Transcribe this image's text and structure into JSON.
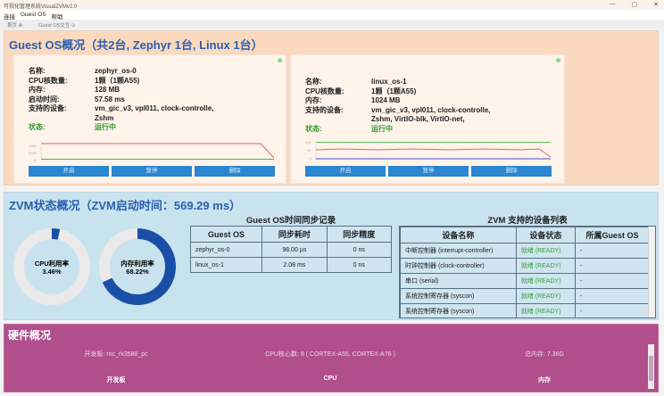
{
  "window": {
    "title": "可视化管理系统VisualZVMv2.0",
    "controls": [
      "—",
      "▢",
      "✕"
    ]
  },
  "menu": [
    "连接",
    "Guest OS",
    "帮助"
  ],
  "tabs": [
    "首页 ⊗",
    "Guest OS交互 ⊙"
  ],
  "guest_section": {
    "title": "Guest OS概况（共2台, Zephyr 1台, Linux 1台）",
    "cards": [
      {
        "rows": [
          [
            "名称:",
            "zephyr_os-0"
          ],
          [
            "CPU核数量:",
            "1颗（1颗A55)"
          ],
          [
            "内存:",
            "128 MB"
          ],
          [
            "启动时间:",
            "57.58 ms"
          ],
          [
            "支持的设备:",
            "vm_gic_v3, vpl011, clock-controlle,\nZshm"
          ]
        ],
        "status_label": "状态:",
        "status": "运行中",
        "chart_ticks": [
          "6000",
          "4000",
          "2000",
          "0"
        ],
        "buttons": [
          "开启",
          "暂停",
          "删除"
        ]
      },
      {
        "rows": [
          [
            "名称:",
            "linux_os-1"
          ],
          [
            "CPU核数量:",
            "1颗（1颗A55)"
          ],
          [
            "内存:",
            "1024 MB"
          ],
          [
            "支持的设备:",
            "vm_gic_v3, vpl011, clock-controlle,\nZshm, VirtIO-blk, VirtIO-net,"
          ]
        ],
        "status_label": "状态:",
        "status": "运行中",
        "chart_ticks": [
          "100",
          "50",
          "0"
        ],
        "buttons": [
          "开启",
          "暂停",
          "删除"
        ]
      }
    ]
  },
  "zvm_section": {
    "title": "ZVM状态概况（ZVM启动时间：569.29 ms）",
    "cpu": {
      "label": "CPU利用率",
      "value": "3.46%",
      "percent": 3.46
    },
    "mem": {
      "label": "内存利用率",
      "value": "68.22%",
      "percent": 68.22
    },
    "sync_table": {
      "title": "Guest OS时间同步记录",
      "headers": [
        "Guest OS",
        "同步耗时",
        "同步精度"
      ],
      "rows": [
        [
          "zephyr_os-0",
          "98.00 μs",
          "0 ns"
        ],
        [
          "linux_os-1",
          "2.08 ms",
          "0 ns"
        ]
      ]
    },
    "device_table": {
      "title": "ZVM 支持的设备列表",
      "headers": [
        "设备名称",
        "设备状态",
        "所属Guest OS"
      ],
      "rows": [
        [
          "中断控制器 (interrupt-controller)",
          "就绪 (READY)",
          "-"
        ],
        [
          "时钟控制器 (clock-controller)",
          "就绪 (READY)",
          "-"
        ],
        [
          "串口 (serial)",
          "就绪 (READY)",
          "-"
        ],
        [
          "系统控制寄存器 (syscon)",
          "就绪 (READY)",
          "-"
        ],
        [
          "系统控制寄存器 (syscon)",
          "就绪 (READY)",
          "-"
        ]
      ]
    }
  },
  "hardware": {
    "title": "硬件概况",
    "board_value": "开发板: roc_rk3588_pc",
    "cpu_value": "CPU核心数: 8 ( CORTEX-A55, CORTEX-A76 )",
    "mem_value": "总内存: 7.36G",
    "board_label": "开发板",
    "cpu_label": "CPU",
    "mem_label": "内存"
  },
  "colors": {
    "accent": "#2b5fae",
    "donut": "#1a4fa8",
    "button": "#2a86d0",
    "ready": "#3aa03a",
    "hardware_bg": "#b04f8c",
    "guest_bg": "#fbd9be",
    "zvm_bg": "#c9e3ee"
  }
}
